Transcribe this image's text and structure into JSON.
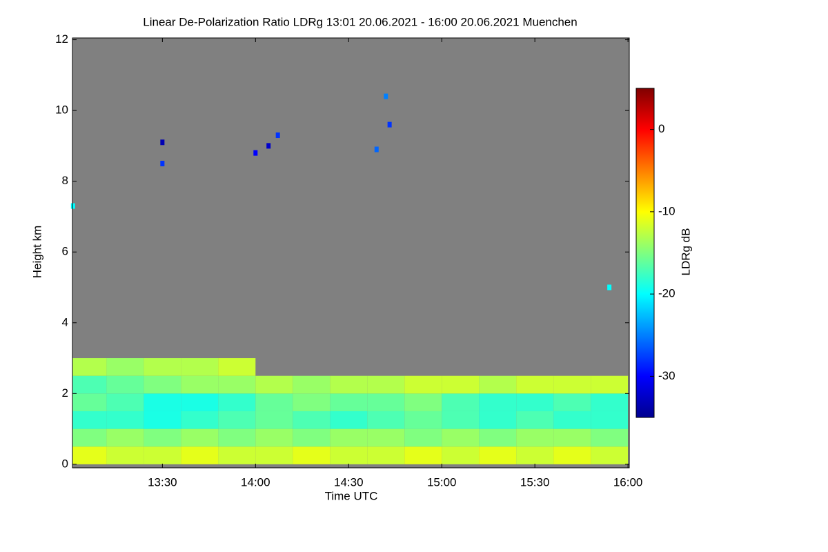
{
  "chart_data": {
    "type": "heatmap",
    "title": "Linear De-Polarization Ratio LDRg   13:01 20.06.2021 - 16:00 20.06.2021 Muenchen",
    "x_label": "Time UTC",
    "y_label": "Height km",
    "colorbar_label": "LDRg dB",
    "xlim": [
      13.017,
      16.007
    ],
    "xticks": [
      {
        "value": 13.5,
        "label": "13:30"
      },
      {
        "value": 14,
        "label": "14:00"
      },
      {
        "value": 14.5,
        "label": "14:30"
      },
      {
        "value": 15,
        "label": "15:00"
      },
      {
        "value": 15.5,
        "label": "15:30"
      },
      {
        "value": 16,
        "label": "16:00"
      }
    ],
    "ylim": [
      -0.1,
      12.05
    ],
    "yticks": [
      0,
      2,
      4,
      6,
      8,
      10,
      12
    ],
    "zlim": [
      -35,
      5
    ],
    "zticks": [
      0,
      -10,
      -20,
      -30
    ],
    "x": [
      13.1,
      13.3,
      13.5,
      13.7,
      13.9,
      14.1,
      14.3,
      14.5,
      14.7,
      14.9,
      15.1,
      15.3,
      15.5,
      15.7,
      15.9
    ],
    "y": [
      0.25,
      0.75,
      1.25,
      1.75,
      2.25,
      2.75
    ],
    "z": [
      [
        -11,
        -12,
        -12,
        -11,
        -12,
        -12,
        -11,
        -12,
        -12,
        -11,
        -12,
        -11,
        -12,
        -11,
        -12
      ],
      [
        -15,
        -14,
        -15,
        -14,
        -15,
        -14,
        -15,
        -14,
        -14,
        -15,
        -14,
        -15,
        -14,
        -14,
        -15
      ],
      [
        -18,
        -18,
        -19,
        -18,
        -17,
        -16,
        -17,
        -18,
        -17,
        -16,
        -17,
        -18,
        -17,
        -18,
        -18
      ],
      [
        -16,
        -17,
        -19,
        -19,
        -18,
        -16,
        -15,
        -16,
        -16,
        -15,
        -17,
        -18,
        -18,
        -17,
        -18
      ],
      [
        -17,
        -16,
        -15,
        -14,
        -14,
        -13,
        -14,
        -13,
        -13,
        -12,
        -12,
        -13,
        -12,
        -12,
        -12
      ],
      [
        -13,
        -14,
        -13,
        -13,
        -12,
        null,
        null,
        null,
        null,
        null,
        null,
        null,
        null,
        null,
        null
      ]
    ],
    "points": {
      "x": [
        13.02,
        13.5,
        13.5,
        14.0,
        14.07,
        14.12,
        14.65,
        14.72,
        14.7,
        15.9
      ],
      "y": [
        7.3,
        8.5,
        9.1,
        8.8,
        9.0,
        9.3,
        8.9,
        9.6,
        10.4,
        5.0
      ],
      "z": [
        -20,
        -28,
        -33,
        -30,
        -32,
        -28,
        -26,
        -28,
        -25,
        -20
      ]
    }
  }
}
